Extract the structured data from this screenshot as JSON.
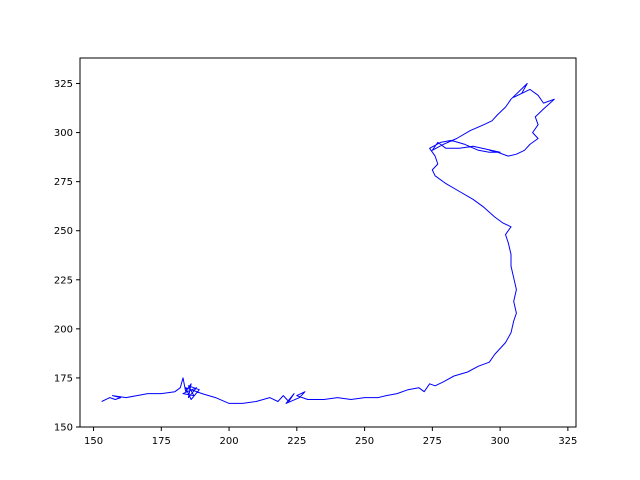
{
  "colors": {
    "line": "#0000ff",
    "axes": "#000000",
    "background": "#ffffff"
  },
  "chart_data": {
    "type": "line",
    "title": "",
    "xlabel": "",
    "ylabel": "",
    "xlim": [
      145,
      328
    ],
    "ylim": [
      150,
      338
    ],
    "grid": false,
    "x_ticks": [
      150,
      175,
      200,
      225,
      250,
      275,
      300,
      325
    ],
    "y_ticks": [
      150,
      175,
      200,
      225,
      250,
      275,
      300,
      325
    ],
    "x_tick_labels": [
      "150",
      "175",
      "200",
      "225",
      "250",
      "275",
      "300",
      "325"
    ],
    "y_tick_labels": [
      "150",
      "175",
      "200",
      "225",
      "250",
      "275",
      "300",
      "325"
    ],
    "series": [
      {
        "points": [
          [
            153,
            163
          ],
          [
            156,
            165
          ],
          [
            158,
            164
          ],
          [
            160,
            165
          ],
          [
            157,
            166
          ],
          [
            162,
            165
          ],
          [
            166,
            166
          ],
          [
            170,
            167
          ],
          [
            175,
            167
          ],
          [
            180,
            168
          ],
          [
            182,
            170
          ],
          [
            183,
            175
          ],
          [
            184,
            168
          ],
          [
            186,
            172
          ],
          [
            185,
            165
          ],
          [
            188,
            170
          ],
          [
            183,
            167
          ],
          [
            187,
            166
          ],
          [
            185,
            171
          ],
          [
            189,
            169
          ],
          [
            186,
            164
          ],
          [
            184,
            170
          ],
          [
            190,
            167
          ],
          [
            195,
            165
          ],
          [
            200,
            162
          ],
          [
            205,
            162
          ],
          [
            210,
            163
          ],
          [
            215,
            165
          ],
          [
            218,
            163
          ],
          [
            220,
            166
          ],
          [
            222,
            163
          ],
          [
            224,
            167
          ],
          [
            221,
            162
          ],
          [
            226,
            165
          ],
          [
            228,
            168
          ],
          [
            225,
            166
          ],
          [
            229,
            164
          ],
          [
            235,
            164
          ],
          [
            240,
            165
          ],
          [
            245,
            164
          ],
          [
            250,
            165
          ],
          [
            255,
            165
          ],
          [
            258,
            166
          ],
          [
            262,
            167
          ],
          [
            266,
            169
          ],
          [
            270,
            170
          ],
          [
            272,
            168
          ],
          [
            274,
            172
          ],
          [
            276,
            171
          ],
          [
            279,
            173
          ],
          [
            283,
            176
          ],
          [
            288,
            178
          ],
          [
            292,
            181
          ],
          [
            296,
            183
          ],
          [
            298,
            187
          ],
          [
            300,
            190
          ],
          [
            302,
            193
          ],
          [
            304,
            198
          ],
          [
            305,
            204
          ],
          [
            306,
            208
          ],
          [
            305,
            214
          ],
          [
            306,
            220
          ],
          [
            305,
            226
          ],
          [
            304,
            232
          ],
          [
            304,
            238
          ],
          [
            303,
            244
          ],
          [
            302,
            248
          ],
          [
            304,
            252
          ],
          [
            301,
            254
          ],
          [
            298,
            257
          ],
          [
            294,
            262
          ],
          [
            290,
            266
          ],
          [
            285,
            270
          ],
          [
            280,
            274
          ],
          [
            276,
            278
          ],
          [
            275,
            281
          ],
          [
            277,
            284
          ],
          [
            276,
            288
          ],
          [
            274,
            292
          ],
          [
            278,
            295
          ],
          [
            282,
            296
          ],
          [
            287,
            294
          ],
          [
            292,
            291
          ],
          [
            296,
            290
          ],
          [
            300,
            290
          ],
          [
            290,
            293
          ],
          [
            285,
            292
          ],
          [
            280,
            292
          ],
          [
            277,
            295
          ],
          [
            275,
            291
          ],
          [
            279,
            294
          ],
          [
            284,
            297
          ],
          [
            289,
            301
          ],
          [
            294,
            304
          ],
          [
            297,
            306
          ],
          [
            299,
            309
          ],
          [
            302,
            313
          ],
          [
            304,
            317
          ],
          [
            307,
            321
          ],
          [
            310,
            325
          ],
          [
            308,
            320
          ],
          [
            305,
            318
          ],
          [
            311,
            322
          ],
          [
            314,
            319
          ],
          [
            316,
            315
          ],
          [
            320,
            317
          ],
          [
            316,
            312
          ],
          [
            313,
            308
          ],
          [
            314,
            304
          ],
          [
            312,
            300
          ],
          [
            314,
            297
          ],
          [
            311,
            294
          ],
          [
            309,
            291
          ],
          [
            306,
            289
          ],
          [
            303,
            288
          ],
          [
            299,
            290
          ],
          [
            296,
            291
          ]
        ]
      }
    ]
  }
}
